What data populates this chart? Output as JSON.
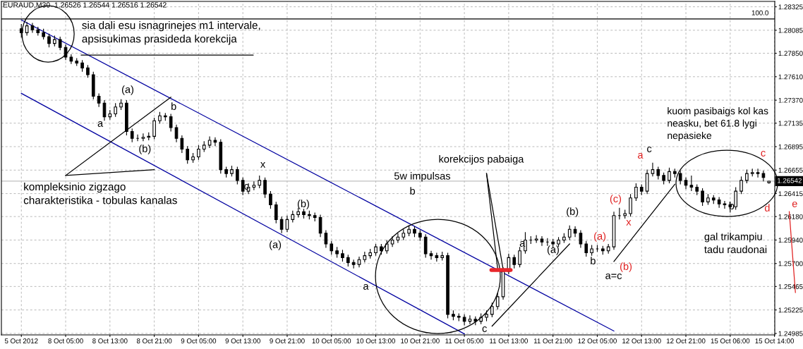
{
  "chart_data": {
    "type": "candlestick",
    "title": "EURAUD,M30  1.26526 1.26544 1.26516 1.26542",
    "categories": [
      "5 Oct 2012",
      null,
      null,
      null,
      null,
      null,
      null,
      null,
      "8 Oct 05:00",
      null,
      null,
      null,
      null,
      null,
      null,
      null,
      "8 Oct 13:00",
      null,
      null,
      null,
      null,
      null,
      null,
      null,
      "8 Oct 21:00",
      null,
      null,
      null,
      null,
      null,
      null,
      null,
      "9 Oct 05:00",
      null,
      null,
      null,
      null,
      null,
      null,
      null,
      "9 Oct 13:00",
      null,
      null,
      null,
      null,
      null,
      null,
      null,
      "9 Oct 21:00",
      null,
      null,
      null,
      null,
      null,
      null,
      null,
      "10 Oct 05:00",
      null,
      null,
      null,
      null,
      null,
      null,
      null,
      "10 Oct 13:00",
      null,
      null,
      null,
      null,
      null,
      null,
      null,
      "10 Oct 21:00",
      null,
      null,
      null,
      null,
      null,
      null,
      null,
      "11 Oct 05:00",
      null,
      null,
      null,
      null,
      null,
      null,
      null,
      "11 Oct 13:00",
      null,
      null,
      null,
      null,
      null,
      null,
      null,
      "11 Oct 21:00",
      null,
      null,
      null,
      null,
      null,
      null,
      null,
      "12 Oct 05:00",
      null,
      null,
      null,
      null,
      null,
      null,
      null,
      "12 Oct 13:00",
      null,
      null,
      null,
      null,
      null,
      null,
      null,
      "12 Oct 21:00",
      null,
      null,
      null,
      null,
      null,
      null,
      null,
      "15 Oct 06:00",
      null,
      null,
      null,
      null,
      null,
      null,
      null,
      "15 Oct 14:00"
    ],
    "color": "#000000",
    "ohlc": [
      [
        1.281,
        1.2815,
        1.2801,
        1.2806
      ],
      [
        1.2806,
        1.2817,
        1.2803,
        1.2813
      ],
      [
        1.2813,
        1.2816,
        1.2806,
        1.2809
      ],
      [
        1.2809,
        1.2812,
        1.2803,
        1.2806
      ],
      [
        1.2806,
        1.281,
        1.2799,
        1.2802
      ],
      [
        1.2802,
        1.2805,
        1.2791,
        1.2795
      ],
      [
        1.2795,
        1.2803,
        1.2792,
        1.2799
      ],
      [
        1.2799,
        1.2802,
        1.2788,
        1.2791
      ],
      [
        1.2791,
        1.2794,
        1.2778,
        1.2781
      ],
      [
        1.2781,
        1.2784,
        1.2774,
        1.2777
      ],
      [
        1.2777,
        1.278,
        1.2772,
        1.2775
      ],
      [
        1.2775,
        1.2778,
        1.2766,
        1.277
      ],
      [
        1.277,
        1.2773,
        1.276,
        1.2763
      ],
      [
        1.2763,
        1.2766,
        1.2738,
        1.2741
      ],
      [
        1.2741,
        1.2744,
        1.273,
        1.2734
      ],
      [
        1.2734,
        1.2737,
        1.2716,
        1.272
      ],
      [
        1.272,
        1.2727,
        1.2717,
        1.2723
      ],
      [
        1.2723,
        1.2734,
        1.272,
        1.273
      ],
      [
        1.273,
        1.2738,
        1.2727,
        1.2734
      ],
      [
        1.2734,
        1.2737,
        1.2701,
        1.2705
      ],
      [
        1.2705,
        1.2708,
        1.2694,
        1.2698
      ],
      [
        1.2698,
        1.2702,
        1.2695,
        1.2698
      ],
      [
        1.2698,
        1.2703,
        1.2695,
        1.2699
      ],
      [
        1.2699,
        1.2704,
        1.2696,
        1.27
      ],
      [
        1.27,
        1.2719,
        1.2697,
        1.2716
      ],
      [
        1.2716,
        1.2725,
        1.2713,
        1.2721
      ],
      [
        1.2721,
        1.2724,
        1.2716,
        1.272
      ],
      [
        1.272,
        1.2723,
        1.2705,
        1.2709
      ],
      [
        1.2709,
        1.2712,
        1.2694,
        1.2698
      ],
      [
        1.2698,
        1.2701,
        1.2683,
        1.2687
      ],
      [
        1.2687,
        1.269,
        1.2672,
        1.2676
      ],
      [
        1.2676,
        1.2683,
        1.2673,
        1.2679
      ],
      [
        1.2679,
        1.2691,
        1.2676,
        1.2687
      ],
      [
        1.2687,
        1.2695,
        1.2684,
        1.2691
      ],
      [
        1.2691,
        1.27,
        1.2688,
        1.2696
      ],
      [
        1.2696,
        1.2699,
        1.269,
        1.2694
      ],
      [
        1.2694,
        1.2697,
        1.2662,
        1.2666
      ],
      [
        1.2666,
        1.2669,
        1.2658,
        1.2662
      ],
      [
        1.2662,
        1.267,
        1.2659,
        1.2666
      ],
      [
        1.2666,
        1.2669,
        1.2651,
        1.2655
      ],
      [
        1.2655,
        1.2658,
        1.264,
        1.2644
      ],
      [
        1.2644,
        1.2652,
        1.2641,
        1.2648
      ],
      [
        1.2648,
        1.2654,
        1.2645,
        1.265
      ],
      [
        1.265,
        1.266,
        1.2647,
        1.2655
      ],
      [
        1.2655,
        1.2658,
        1.2637,
        1.2641
      ],
      [
        1.2641,
        1.2644,
        1.2626,
        1.263
      ],
      [
        1.263,
        1.2633,
        1.2611,
        1.2615
      ],
      [
        1.2615,
        1.2618,
        1.2601,
        1.2605
      ],
      [
        1.2605,
        1.2619,
        1.2602,
        1.2615
      ],
      [
        1.2615,
        1.2624,
        1.2612,
        1.262
      ],
      [
        1.262,
        1.2627,
        1.2617,
        1.2623
      ],
      [
        1.2623,
        1.2626,
        1.2616,
        1.262
      ],
      [
        1.262,
        1.2624,
        1.2615,
        1.2619
      ],
      [
        1.2619,
        1.2622,
        1.2613,
        1.2617
      ],
      [
        1.2617,
        1.262,
        1.2597,
        1.2601
      ],
      [
        1.2601,
        1.2604,
        1.2586,
        1.259
      ],
      [
        1.259,
        1.2593,
        1.2579,
        1.2583
      ],
      [
        1.2583,
        1.2587,
        1.2576,
        1.258
      ],
      [
        1.258,
        1.2584,
        1.2572,
        1.2576
      ],
      [
        1.2576,
        1.2579,
        1.2567,
        1.2571
      ],
      [
        1.2571,
        1.2574,
        1.2565,
        1.2569
      ],
      [
        1.2569,
        1.2577,
        1.2566,
        1.2574
      ],
      [
        1.2574,
        1.2582,
        1.2571,
        1.2578
      ],
      [
        1.2578,
        1.2585,
        1.2575,
        1.2581
      ],
      [
        1.2581,
        1.259,
        1.2578,
        1.2587
      ],
      [
        1.2587,
        1.259,
        1.2579,
        1.2583
      ],
      [
        1.2583,
        1.2594,
        1.258,
        1.259
      ],
      [
        1.259,
        1.2598,
        1.2587,
        1.2594
      ],
      [
        1.2594,
        1.2601,
        1.2591,
        1.2597
      ],
      [
        1.2597,
        1.2605,
        1.2594,
        1.2601
      ],
      [
        1.2601,
        1.2609,
        1.2598,
        1.2605
      ],
      [
        1.2605,
        1.2608,
        1.2597,
        1.2601
      ],
      [
        1.2601,
        1.2604,
        1.2593,
        1.2597
      ],
      [
        1.2597,
        1.26,
        1.2576,
        1.258
      ],
      [
        1.258,
        1.2583,
        1.2574,
        1.2578
      ],
      [
        1.2578,
        1.2581,
        1.2572,
        1.2576
      ],
      [
        1.2576,
        1.2582,
        1.2573,
        1.2578
      ],
      [
        1.2578,
        1.2581,
        1.2514,
        1.2518
      ],
      [
        1.2518,
        1.2522,
        1.2512,
        1.2516
      ],
      [
        1.2516,
        1.2519,
        1.2511,
        1.2515
      ],
      [
        1.2515,
        1.2518,
        1.2507,
        1.2511
      ],
      [
        1.2511,
        1.2517,
        1.2508,
        1.2513
      ],
      [
        1.2513,
        1.2516,
        1.2507,
        1.2511
      ],
      [
        1.2511,
        1.2519,
        1.2508,
        1.2515
      ],
      [
        1.2515,
        1.2522,
        1.2511,
        1.2518
      ],
      [
        1.2518,
        1.253,
        1.2515,
        1.2526
      ],
      [
        1.2526,
        1.254,
        1.2523,
        1.2536
      ],
      [
        1.2536,
        1.2566,
        1.2533,
        1.2562
      ],
      [
        1.2562,
        1.258,
        1.2559,
        1.2576
      ],
      [
        1.2576,
        1.2579,
        1.2565,
        1.2569
      ],
      [
        1.2569,
        1.2587,
        1.2566,
        1.2583
      ],
      [
        1.2583,
        1.2602,
        1.258,
        1.2594
      ],
      [
        1.2594,
        1.2598,
        1.259,
        1.2594
      ],
      [
        1.2594,
        1.2599,
        1.2591,
        1.2595
      ],
      [
        1.2595,
        1.2598,
        1.2588,
        1.2592
      ],
      [
        1.2592,
        1.2596,
        1.2588,
        1.2592
      ],
      [
        1.2592,
        1.2595,
        1.2586,
        1.259
      ],
      [
        1.259,
        1.2597,
        1.2587,
        1.2594
      ],
      [
        1.2594,
        1.2601,
        1.2591,
        1.2597
      ],
      [
        1.2597,
        1.2609,
        1.2594,
        1.2605
      ],
      [
        1.2605,
        1.2608,
        1.2597,
        1.2601
      ],
      [
        1.2601,
        1.2604,
        1.2586,
        1.259
      ],
      [
        1.259,
        1.2593,
        1.2577,
        1.2581
      ],
      [
        1.2581,
        1.2589,
        1.2578,
        1.2585
      ],
      [
        1.2585,
        1.2589,
        1.2582,
        1.2585
      ],
      [
        1.2585,
        1.2588,
        1.2579,
        1.2583
      ],
      [
        1.2583,
        1.259,
        1.258,
        1.2587
      ],
      [
        1.2587,
        1.2623,
        1.2584,
        1.2619
      ],
      [
        1.2619,
        1.2627,
        1.2615,
        1.2619
      ],
      [
        1.2619,
        1.2625,
        1.2616,
        1.2621
      ],
      [
        1.2621,
        1.2641,
        1.2618,
        1.2637
      ],
      [
        1.2637,
        1.2652,
        1.2634,
        1.2648
      ],
      [
        1.2648,
        1.2651,
        1.264,
        1.2644
      ],
      [
        1.2644,
        1.2666,
        1.2641,
        1.2662
      ],
      [
        1.2662,
        1.2673,
        1.2659,
        1.2666
      ],
      [
        1.2666,
        1.2669,
        1.2656,
        1.266
      ],
      [
        1.266,
        1.2663,
        1.2651,
        1.2655
      ],
      [
        1.2655,
        1.2668,
        1.2652,
        1.2664
      ],
      [
        1.2664,
        1.2667,
        1.2658,
        1.2662
      ],
      [
        1.2662,
        1.2665,
        1.2651,
        1.2655
      ],
      [
        1.2655,
        1.2658,
        1.2646,
        1.265
      ],
      [
        1.265,
        1.266,
        1.2644,
        1.2648
      ],
      [
        1.2648,
        1.2651,
        1.264,
        1.2644
      ],
      [
        1.2644,
        1.2647,
        1.2629,
        1.2633
      ],
      [
        1.2633,
        1.2641,
        1.263,
        1.2637
      ],
      [
        1.2637,
        1.264,
        1.2631,
        1.2635
      ],
      [
        1.2635,
        1.2638,
        1.2627,
        1.2631
      ],
      [
        1.2631,
        1.2634,
        1.2626,
        1.263
      ],
      [
        1.263,
        1.2633,
        1.2622,
        1.2628
      ],
      [
        1.2628,
        1.2648,
        1.2625,
        1.2644
      ],
      [
        1.2644,
        1.2659,
        1.2641,
        1.2655
      ],
      [
        1.2655,
        1.2666,
        1.2652,
        1.2662
      ],
      [
        1.2662,
        1.2667,
        1.2659,
        1.2663
      ],
      [
        1.2663,
        1.2667,
        1.2658,
        1.2662
      ],
      [
        1.2662,
        1.2665,
        1.2654,
        1.2658
      ],
      [
        1.26526,
        1.26544,
        1.26516,
        1.26542
      ],
      null
    ],
    "series": [
      {
        "type": "line",
        "color": "#0000a0",
        "values": [
          1.2819,
          null,
          null,
          null,
          null,
          null,
          null,
          null,
          null,
          null,
          null,
          null,
          null,
          null,
          null,
          null,
          null,
          null,
          null,
          null,
          null,
          null,
          null,
          null,
          null,
          null,
          null,
          null,
          null,
          null,
          null,
          null,
          null,
          null,
          null,
          null,
          null,
          null,
          null,
          null,
          null,
          null,
          null,
          null,
          null,
          null,
          null,
          null,
          null,
          null,
          null,
          null,
          null,
          null,
          null,
          null,
          null,
          null,
          null,
          null,
          null,
          null,
          null,
          null,
          null,
          null,
          null,
          null,
          null,
          null,
          null,
          null,
          null,
          null,
          null,
          null,
          null,
          null,
          null,
          null,
          null,
          null,
          null,
          null,
          null,
          null,
          null,
          null,
          null,
          null,
          null,
          null,
          null,
          null,
          null,
          null,
          null,
          null,
          null,
          null,
          null,
          null,
          null,
          null,
          null,
          null,
          null,
          1.2501,
          null,
          null,
          null,
          null,
          null,
          null,
          null,
          null,
          null,
          null,
          null,
          null,
          null,
          null,
          null,
          null,
          null,
          null,
          null,
          null,
          null,
          null,
          null,
          null,
          null,
          null,
          null,
          null,
          null
        ]
      },
      {
        "type": "line",
        "color": "#0000a0",
        "values": [
          1.2744,
          null,
          null,
          null,
          null,
          null,
          null,
          null,
          null,
          null,
          null,
          null,
          null,
          null,
          null,
          null,
          null,
          null,
          null,
          null,
          null,
          null,
          null,
          null,
          null,
          null,
          null,
          null,
          null,
          null,
          null,
          null,
          null,
          null,
          null,
          null,
          null,
          null,
          null,
          null,
          null,
          null,
          null,
          null,
          null,
          null,
          null,
          null,
          null,
          null,
          null,
          null,
          null,
          null,
          null,
          null,
          null,
          null,
          null,
          null,
          null,
          null,
          null,
          null,
          null,
          null,
          null,
          null,
          null,
          null,
          null,
          null,
          null,
          null,
          null,
          null,
          null,
          null,
          null,
          null,
          1.2498,
          null,
          null,
          null,
          null,
          null,
          null,
          null,
          null,
          null,
          null,
          null,
          null,
          null,
          null,
          null,
          null,
          null,
          null,
          null,
          null,
          null,
          null,
          null,
          null,
          null,
          null,
          null,
          null,
          null,
          null,
          null,
          null,
          null,
          null,
          null,
          null,
          null,
          null,
          null,
          null,
          null,
          null,
          null,
          null,
          null,
          null,
          null,
          null,
          null,
          null,
          null,
          null,
          null,
          null,
          null,
          null
        ]
      },
      {
        "type": "line",
        "color": "#000000",
        "values": [
          null,
          null,
          null,
          null,
          null,
          null,
          null,
          null,
          1.266,
          null,
          null,
          null,
          null,
          null,
          null,
          null,
          null,
          null,
          null,
          null,
          null,
          null,
          null,
          null,
          null,
          null,
          null,
          1.274,
          null,
          null,
          null,
          null,
          null,
          null,
          null,
          null,
          null,
          null,
          null,
          null,
          null,
          null,
          null,
          null,
          null,
          null,
          null,
          null,
          null,
          null,
          null,
          null,
          null,
          null,
          null,
          null,
          null,
          null,
          null,
          null,
          null,
          null,
          null,
          null,
          null,
          null,
          null,
          null,
          null,
          null,
          null,
          null,
          null,
          null,
          null,
          null,
          null,
          null,
          null,
          null,
          null,
          null,
          null,
          null,
          null,
          null,
          null,
          null,
          null,
          null,
          null,
          null,
          null,
          null,
          null,
          null,
          null,
          null,
          null,
          null,
          null,
          null,
          null,
          null,
          null,
          null,
          null,
          null,
          null,
          null,
          null,
          null,
          null,
          null,
          null,
          null,
          null,
          null,
          null,
          null,
          null,
          null,
          null,
          null,
          null,
          null,
          null,
          null,
          null,
          null,
          null,
          null,
          null,
          null,
          null,
          null,
          null
        ]
      },
      {
        "type": "line",
        "color": "#000000",
        "values": [
          null,
          null,
          null,
          null,
          null,
          null,
          null,
          null,
          1.266,
          null,
          null,
          null,
          null,
          null,
          null,
          null,
          null,
          null,
          null,
          null,
          null,
          null,
          null,
          null,
          1.2666,
          null,
          null,
          null,
          null,
          null,
          null,
          null,
          null,
          null,
          null,
          null,
          null,
          null,
          null,
          null,
          null,
          null,
          null,
          null,
          null,
          null,
          null,
          null,
          null,
          null,
          null,
          null,
          null,
          null,
          null,
          null,
          null,
          null,
          null,
          null,
          null,
          null,
          null,
          null,
          null,
          null,
          null,
          null,
          null,
          null,
          null,
          null,
          null,
          null,
          null,
          null,
          null,
          null,
          null,
          null,
          null,
          null,
          null,
          null,
          null,
          null,
          null,
          null,
          null,
          null,
          null,
          null,
          null,
          null,
          null,
          null,
          null,
          null,
          null,
          null,
          null,
          null,
          null,
          null,
          null,
          null,
          null,
          null,
          null,
          null,
          null,
          null,
          null,
          null,
          null,
          null,
          null,
          null,
          null,
          null,
          null,
          null,
          null,
          null,
          null,
          null,
          null,
          null,
          null,
          null,
          null,
          null,
          null,
          null,
          null,
          null,
          null
        ]
      },
      {
        "type": "line",
        "color": "#000000",
        "values": [
          null,
          null,
          null,
          null,
          null,
          null,
          null,
          null,
          null,
          null,
          null,
          null,
          null,
          null,
          null,
          null,
          null,
          null,
          null,
          null,
          null,
          null,
          null,
          null,
          null,
          null,
          null,
          null,
          null,
          null,
          null,
          null,
          null,
          null,
          null,
          null,
          null,
          null,
          null,
          null,
          null,
          null,
          null,
          null,
          null,
          null,
          null,
          null,
          null,
          null,
          null,
          null,
          null,
          null,
          null,
          null,
          null,
          null,
          null,
          null,
          null,
          null,
          null,
          null,
          null,
          null,
          null,
          null,
          null,
          null,
          null,
          null,
          null,
          null,
          null,
          null,
          null,
          null,
          null,
          null,
          null,
          null,
          null,
          null,
          null,
          1.2506,
          null,
          null,
          null,
          null,
          null,
          null,
          null,
          null,
          null,
          null,
          null,
          null,
          null,
          1.259,
          null,
          null,
          null,
          null,
          null,
          null,
          null,
          null,
          null,
          null,
          null,
          null,
          null,
          null,
          null,
          null,
          null,
          null,
          null,
          null,
          null,
          null,
          null,
          null,
          null,
          null,
          null,
          null,
          null,
          null,
          null,
          null,
          null,
          null,
          null,
          null,
          null
        ]
      },
      {
        "type": "line",
        "color": "#000000",
        "values": [
          null,
          null,
          null,
          null,
          null,
          null,
          null,
          null,
          null,
          null,
          null,
          null,
          null,
          null,
          null,
          null,
          null,
          null,
          null,
          null,
          null,
          null,
          null,
          null,
          null,
          null,
          null,
          null,
          null,
          null,
          null,
          null,
          null,
          null,
          null,
          null,
          null,
          null,
          null,
          null,
          null,
          null,
          null,
          null,
          null,
          null,
          null,
          null,
          null,
          null,
          null,
          null,
          null,
          null,
          null,
          null,
          null,
          null,
          null,
          null,
          null,
          null,
          null,
          null,
          null,
          null,
          null,
          null,
          null,
          null,
          null,
          null,
          null,
          null,
          null,
          null,
          null,
          null,
          null,
          null,
          null,
          null,
          null,
          null,
          null,
          null,
          null,
          null,
          null,
          null,
          null,
          null,
          null,
          null,
          null,
          null,
          null,
          null,
          null,
          null,
          null,
          null,
          null,
          null,
          null,
          null,
          null,
          1.2572,
          null,
          null,
          null,
          null,
          null,
          null,
          null,
          null,
          null,
          null,
          1.2651,
          null,
          null,
          null,
          null,
          null,
          null,
          null,
          null,
          null,
          null,
          null,
          null,
          null,
          null,
          null,
          null,
          null,
          null
        ]
      },
      {
        "type": "line",
        "color": "#000000",
        "values": [
          null,
          null,
          null,
          null,
          null,
          null,
          null,
          null,
          null,
          null,
          null,
          null,
          null,
          null,
          null,
          null,
          null,
          null,
          null,
          null,
          null,
          null,
          null,
          null,
          null,
          null,
          null,
          null,
          null,
          null,
          null,
          null,
          null,
          null,
          null,
          null,
          null,
          null,
          null,
          null,
          null,
          null,
          null,
          null,
          null,
          null,
          null,
          null,
          null,
          null,
          null,
          null,
          null,
          null,
          null,
          null,
          null,
          null,
          null,
          null,
          null,
          null,
          null,
          null,
          null,
          null,
          null,
          null,
          null,
          null,
          null,
          null,
          null,
          null,
          null,
          null,
          null,
          null,
          null,
          null,
          null,
          null,
          null,
          null,
          1.2662,
          null,
          1.2565,
          null,
          null,
          null,
          null,
          null,
          null,
          null,
          null,
          null,
          null,
          null,
          null,
          null,
          null,
          null,
          null,
          null,
          null,
          null,
          null,
          null,
          null,
          null,
          null,
          null,
          null,
          null,
          null,
          null,
          null,
          null,
          null,
          null,
          null,
          null,
          null,
          null,
          null,
          null,
          null,
          null,
          null,
          null,
          null,
          null,
          null,
          null,
          null,
          null,
          null
        ]
      },
      {
        "type": "line",
        "color": "#000000",
        "values": [
          null,
          null,
          null,
          null,
          null,
          null,
          null,
          null,
          null,
          null,
          null,
          null,
          null,
          null,
          null,
          null,
          null,
          null,
          null,
          null,
          null,
          null,
          null,
          null,
          null,
          null,
          null,
          null,
          null,
          null,
          null,
          null,
          null,
          null,
          null,
          null,
          null,
          null,
          null,
          null,
          null,
          null,
          null,
          null,
          null,
          null,
          null,
          null,
          null,
          null,
          null,
          null,
          null,
          null,
          null,
          null,
          null,
          null,
          null,
          null,
          null,
          null,
          null,
          null,
          null,
          null,
          null,
          null,
          null,
          null,
          null,
          null,
          null,
          null,
          null,
          null,
          null,
          null,
          null,
          null,
          null,
          null,
          null,
          null,
          1.2662,
          null,
          null,
          1.2564,
          null,
          null,
          null,
          null,
          null,
          null,
          null,
          null,
          null,
          null,
          null,
          null,
          null,
          null,
          null,
          null,
          null,
          null,
          null,
          null,
          null,
          null,
          null,
          null,
          null,
          null,
          null,
          null,
          null,
          null,
          null,
          null,
          null,
          null,
          null,
          null,
          null,
          null,
          null,
          null,
          null,
          null,
          null,
          null,
          null,
          null,
          null,
          null,
          null
        ]
      }
    ],
    "ylim": [
      1.2497,
      1.2838
    ],
    "yticks": [
      1.28325,
      1.28085,
      {
        "value": 1.2785,
        "label": "1.27850"
      },
      {
        "value": 1.2761,
        "label": "1.27610"
      },
      {
        "value": 1.2737,
        "label": "1.27370"
      },
      1.27135,
      1.26895,
      1.26655,
      1.26415,
      {
        "value": 1.2618,
        "label": "1.26180"
      },
      {
        "value": 1.2594,
        "label": "1.25940"
      },
      {
        "value": 1.257,
        "label": "1.25700"
      },
      1.25465,
      1.25225,
      1.24985
    ],
    "ref_lines": [
      {
        "axis": "y",
        "value": 1.282,
        "color": "#000000"
      },
      {
        "axis": "y",
        "value": 1.26542,
        "label": "1.26542",
        "color": "#c0c0c0"
      }
    ],
    "grid": true,
    "annotations": [
      "sia dali esu isnagrinejes m1 intervale,\napsisukimas prasideda korekcija",
      "kompleksinio zigzago\ncharakteristika - tobulas kanalas",
      "5w impulsas",
      "korekcijos pabaiga",
      "kuom pasibaigs kol kas\nneasku, bet 61.8 lygi\nnepasieke",
      "gal trikampiu\ntadu raudonai",
      "a=c",
      "(a)",
      "a",
      "b",
      "(b)",
      "c",
      "x",
      "(a)",
      "(b)",
      "a",
      "b",
      "c",
      "a",
      "(b)",
      "(a)",
      "b",
      "c",
      "b",
      "(a)",
      "(c)",
      "x",
      "(b)",
      "a",
      "c",
      "d",
      "e",
      "100.0"
    ]
  }
}
